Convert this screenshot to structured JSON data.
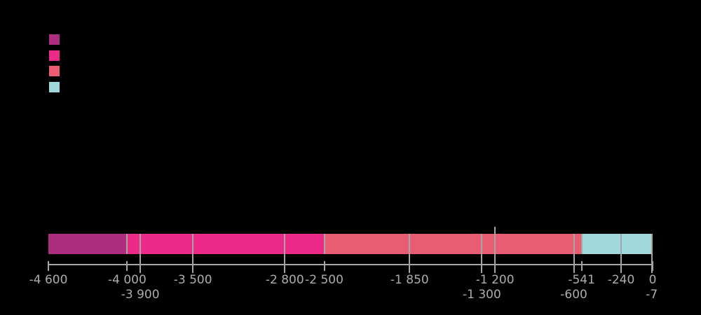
{
  "colors": {
    "background": "#000000",
    "axis_line": "#a5a5a5",
    "marker_line": "#a5a5a5",
    "tick_label": "#acacac"
  },
  "legend": {
    "items": [
      {
        "name": "legend-swatch-1",
        "color": "#ad2d80"
      },
      {
        "name": "legend-swatch-2",
        "color": "#ec2a87"
      },
      {
        "name": "legend-swatch-3",
        "color": "#e95c72"
      },
      {
        "name": "legend-swatch-4",
        "color": "#a0d8db"
      }
    ]
  },
  "chart_data": {
    "type": "bar",
    "orientation": "horizontal-timeline",
    "title": "",
    "xlabel": "",
    "ylabel": "",
    "axis_range": [
      -4600,
      0
    ],
    "grid": false,
    "legend_position": "top-left",
    "segments": [
      {
        "start": -4600,
        "end": -4000,
        "color": "#ad2d80"
      },
      {
        "start": -4000,
        "end": -2500,
        "color": "#ec2a87"
      },
      {
        "start": -2500,
        "end": -541,
        "color": "#e95c72"
      },
      {
        "start": -541,
        "end": 0,
        "color": "#a0d8db"
      }
    ],
    "ticks": [
      {
        "value": -4600,
        "label": "-4 600",
        "row": 1,
        "line": "short"
      },
      {
        "value": -4000,
        "label": "-4 000",
        "row": 1,
        "line": "short"
      },
      {
        "value": -3900,
        "label": "-3 900",
        "row": 2,
        "line": "full"
      },
      {
        "value": -3500,
        "label": "-3 500",
        "row": 1,
        "line": "full"
      },
      {
        "value": -2800,
        "label": "-2 800",
        "row": 1,
        "line": "full"
      },
      {
        "value": -2500,
        "label": "-2 500",
        "row": 1,
        "line": "short"
      },
      {
        "value": -1850,
        "label": "-1 850",
        "row": 1,
        "line": "full"
      },
      {
        "value": -1300,
        "label": "-1 300",
        "row": 2,
        "line": "full"
      },
      {
        "value": -1200,
        "label": "-1 200",
        "row": 1,
        "line": "tall"
      },
      {
        "value": -600,
        "label": "-600",
        "row": 2,
        "line": "full"
      },
      {
        "value": -541,
        "label": "-541",
        "row": 1,
        "line": "short"
      },
      {
        "value": -240,
        "label": "-240",
        "row": 1,
        "line": "full"
      },
      {
        "value": -7,
        "label": "-7",
        "row": 2,
        "line": "full"
      },
      {
        "value": 0,
        "label": "0",
        "row": 1,
        "line": "short"
      }
    ]
  }
}
